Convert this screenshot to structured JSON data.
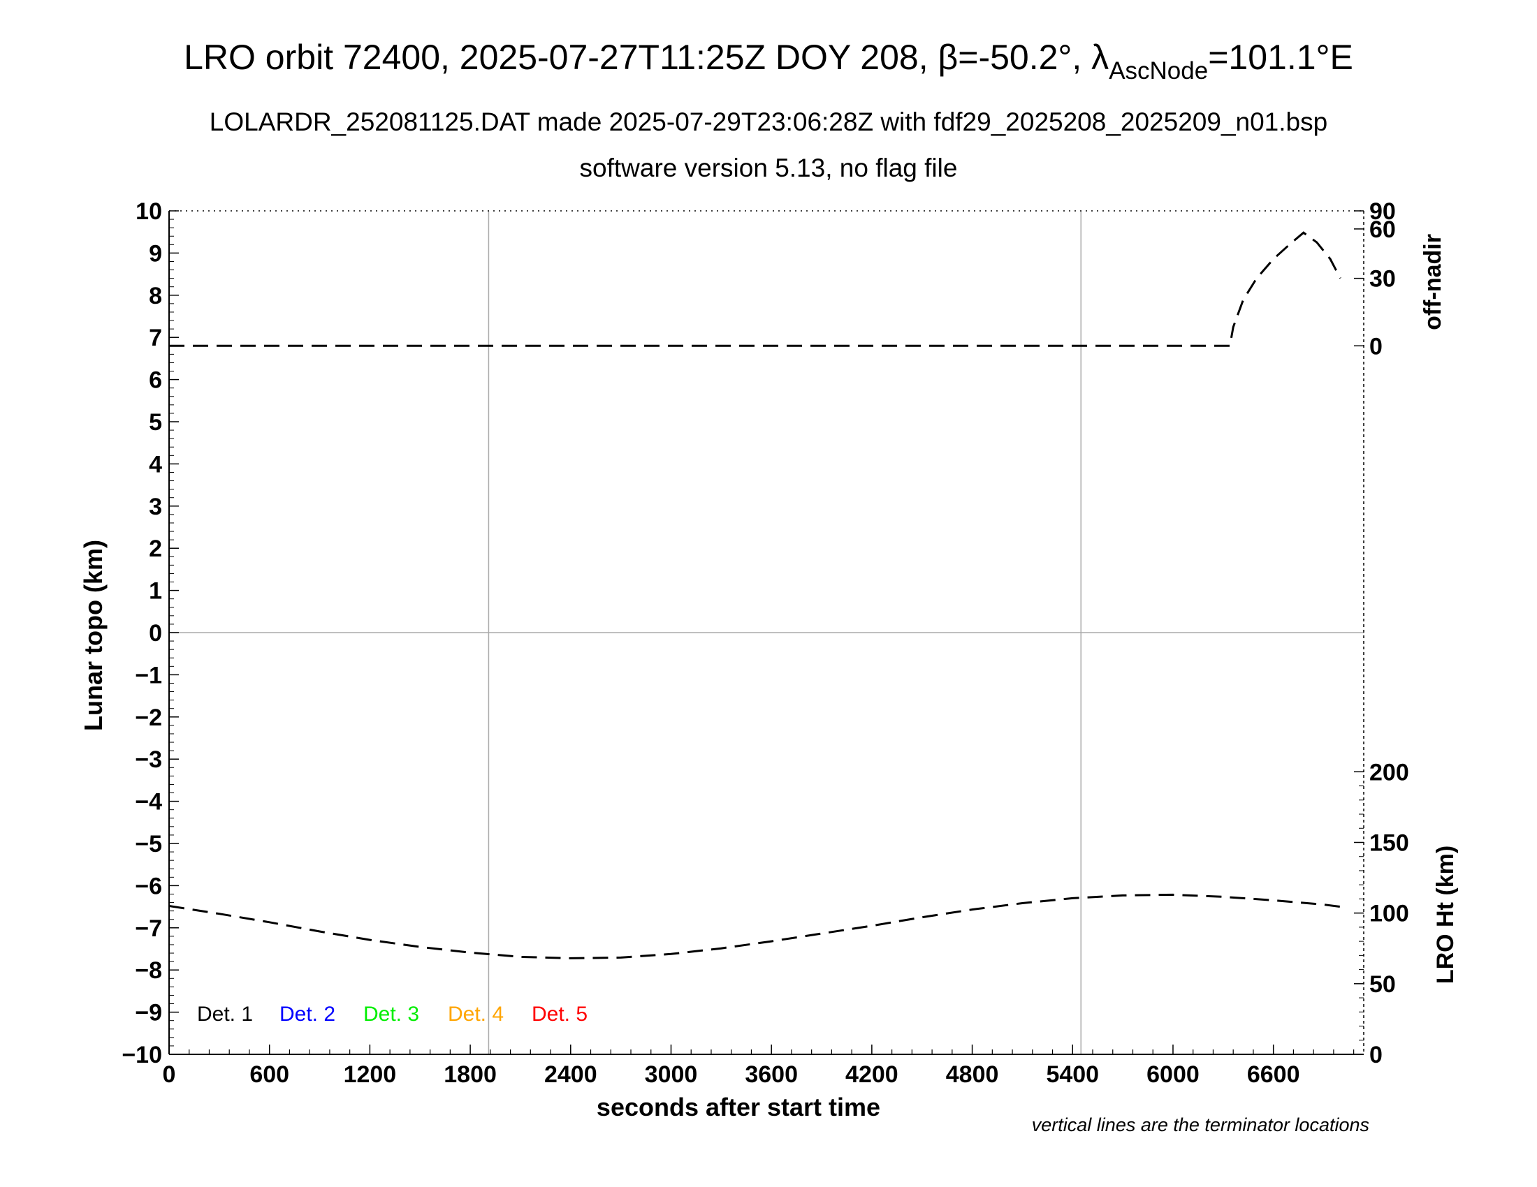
{
  "header": {
    "title_main": "LRO orbit 72400, 2025-07-27T11:25Z DOY 208, β=-50.2°, λ",
    "title_sub": "AscNode",
    "title_end": "=101.1°E",
    "subtitle": "LOLARDR_252081125.DAT made 2025-07-29T23:06:28Z with fdf29_2025208_2025209_n01.bsp",
    "subtitle2": "software version 5.13, no flag file"
  },
  "chart_data": {
    "type": "line",
    "xlabel": "seconds after start time",
    "ylabel": "Lunar topo (km)",
    "right_ylabel_top": "off-nadir",
    "right_ylabel_bottom": "LRO Ht (km)",
    "note": "vertical lines are the terminator locations",
    "xlim": [
      0,
      7140
    ],
    "ylim": [
      -10,
      10
    ],
    "x_ticks": [
      0,
      600,
      1200,
      1800,
      2400,
      3000,
      3600,
      4200,
      4800,
      5400,
      6000,
      6600
    ],
    "y_ticks": [
      10,
      9,
      8,
      7,
      6,
      5,
      4,
      3,
      2,
      1,
      0,
      -1,
      -2,
      -3,
      -4,
      -5,
      -6,
      -7,
      -8,
      -9,
      -10
    ],
    "y_tick_labels": [
      "10",
      "9",
      "8",
      "7",
      "6",
      "5",
      "4",
      "3",
      "2",
      "1",
      "0",
      "−1",
      "−2",
      "−3",
      "−4",
      "−5",
      "−6",
      "−7",
      "−8",
      "−9",
      "−10"
    ],
    "off_nadir_ticks": [
      0,
      30,
      60,
      90
    ],
    "lro_ht_ticks": [
      0,
      50,
      100,
      150,
      200
    ],
    "terminator_x": [
      1910,
      5450
    ],
    "grid_y": [
      0
    ],
    "legend": [
      {
        "label": "Det. 1",
        "color": "#000000"
      },
      {
        "label": "Det. 2",
        "color": "#0000ff"
      },
      {
        "label": "Det. 3",
        "color": "#00ee00"
      },
      {
        "label": "Det. 4",
        "color": "#ffa500"
      },
      {
        "label": "Det. 5",
        "color": "#ff0000"
      }
    ],
    "series": [
      {
        "name": "off-nadir",
        "axis": "right-top",
        "color": "#000000",
        "style": "dashed",
        "x": [
          0,
          600,
          1200,
          1800,
          2400,
          3000,
          3600,
          4200,
          4800,
          5400,
          6000,
          6340,
          6360,
          6420,
          6500,
          6600,
          6700,
          6780,
          6860,
          6940,
          7000
        ],
        "y": [
          0,
          0,
          0,
          0,
          0,
          0,
          0,
          0,
          0,
          0,
          0,
          0,
          8,
          20,
          30,
          40,
          49,
          57,
          50,
          40,
          30
        ]
      },
      {
        "name": "LRO Ht",
        "axis": "right-bottom",
        "color": "#000000",
        "style": "dashed",
        "x": [
          0,
          300,
          600,
          900,
          1200,
          1500,
          1800,
          2100,
          2400,
          2700,
          3000,
          3300,
          3600,
          3900,
          4200,
          4500,
          4800,
          5100,
          5400,
          5700,
          6000,
          6300,
          6600,
          6900,
          7000
        ],
        "y": [
          105,
          99.5,
          93.5,
          87,
          81,
          76,
          72,
          69,
          68,
          68.5,
          71,
          75,
          80,
          85.5,
          91,
          97,
          102.5,
          107,
          110.5,
          112.5,
          113,
          111.5,
          109,
          106,
          104.5
        ]
      }
    ]
  }
}
